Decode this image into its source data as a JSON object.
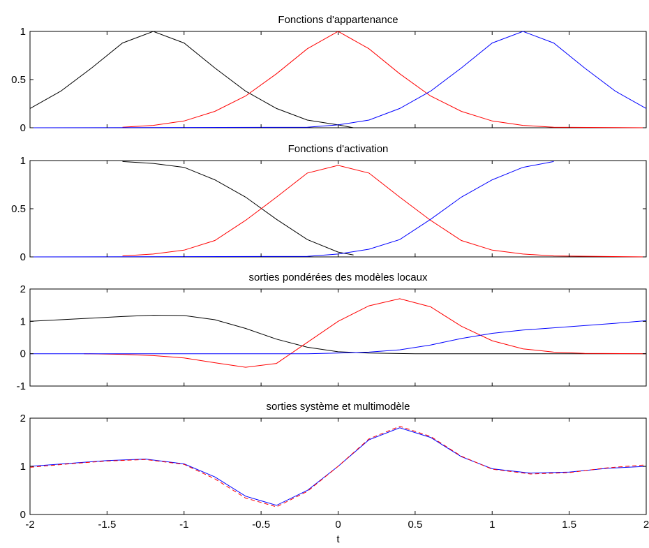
{
  "colors": {
    "black": "#000000",
    "red": "#ff0000",
    "blue": "#0000ff"
  },
  "chart_data": [
    {
      "type": "line",
      "title": "Fonctions d'appartenance",
      "xlim": [
        -2,
        2
      ],
      "ylim": [
        0,
        1
      ],
      "yticks": [
        0,
        0.5,
        1
      ],
      "ytick_labels": [
        "0",
        "0.5",
        "1"
      ],
      "xticks": [
        -2,
        -1.5,
        -1,
        -0.5,
        0,
        0.5,
        1,
        1.5,
        2
      ],
      "xtick_labels": [],
      "xlabel": "",
      "series": [
        {
          "color": "#000000",
          "style": "solid",
          "x": [
            -2,
            -1.8,
            -1.6,
            -1.4,
            -1.2,
            -1.0,
            -0.8,
            -0.6,
            -0.4,
            -0.2,
            0.0,
            0.1
          ],
          "y": [
            0.2,
            0.38,
            0.62,
            0.88,
            1.0,
            0.88,
            0.62,
            0.38,
            0.2,
            0.08,
            0.03,
            0.0
          ]
        },
        {
          "color": "#000000",
          "style": "solid",
          "x": [
            -2,
            2
          ],
          "y": [
            0.0,
            0.0
          ]
        },
        {
          "color": "#ff0000",
          "style": "solid",
          "x": [
            -1.4,
            -1.2,
            -1.0,
            -0.8,
            -0.6,
            -0.4,
            -0.2,
            0.0,
            0.2,
            0.4,
            0.6,
            0.8,
            1.0,
            1.2,
            1.4,
            2.0
          ],
          "y": [
            0.005,
            0.025,
            0.07,
            0.17,
            0.33,
            0.56,
            0.82,
            1.0,
            0.82,
            0.56,
            0.33,
            0.17,
            0.07,
            0.025,
            0.005,
            0.0
          ]
        },
        {
          "color": "#0000ff",
          "style": "solid",
          "x": [
            -2,
            -0.2,
            0.0,
            0.2,
            0.4,
            0.6,
            0.8,
            1.0,
            1.2,
            1.4,
            1.6,
            1.8,
            2.0
          ],
          "y": [
            0.0,
            0.005,
            0.03,
            0.08,
            0.2,
            0.38,
            0.62,
            0.88,
            1.0,
            0.88,
            0.62,
            0.38,
            0.2
          ]
        }
      ]
    },
    {
      "type": "line",
      "title": "Fonctions d'activation",
      "xlim": [
        -2,
        2
      ],
      "ylim": [
        0,
        1
      ],
      "yticks": [
        0,
        0.5,
        1
      ],
      "ytick_labels": [
        "0",
        "0.5",
        "1"
      ],
      "xticks": [
        -2,
        -1.5,
        -1,
        -0.5,
        0,
        0.5,
        1,
        1.5,
        2
      ],
      "xtick_labels": [],
      "xlabel": "",
      "series": [
        {
          "color": "#000000",
          "style": "solid",
          "x": [
            -1.4,
            -1.2,
            -1.0,
            -0.8,
            -0.6,
            -0.4,
            -0.2,
            0.0,
            0.1
          ],
          "y": [
            0.99,
            0.97,
            0.93,
            0.8,
            0.62,
            0.39,
            0.18,
            0.05,
            0.02
          ]
        },
        {
          "color": "#000000",
          "style": "solid",
          "x": [
            -2,
            2
          ],
          "y": [
            0.0,
            0.0
          ]
        },
        {
          "color": "#ff0000",
          "style": "solid",
          "x": [
            -1.4,
            -1.2,
            -1.0,
            -0.8,
            -0.6,
            -0.4,
            -0.2,
            0.0,
            0.2,
            0.4,
            0.6,
            0.8,
            1.0,
            1.2,
            1.4,
            2.0
          ],
          "y": [
            0.01,
            0.03,
            0.07,
            0.17,
            0.38,
            0.62,
            0.87,
            0.95,
            0.87,
            0.62,
            0.38,
            0.17,
            0.07,
            0.03,
            0.01,
            0.0
          ]
        },
        {
          "color": "#0000ff",
          "style": "solid",
          "x": [
            -2,
            -0.2,
            0.0,
            0.2,
            0.4,
            0.6,
            0.8,
            1.0,
            1.2,
            1.4
          ],
          "y": [
            0.0,
            0.005,
            0.03,
            0.08,
            0.18,
            0.39,
            0.62,
            0.8,
            0.93,
            0.99
          ]
        }
      ]
    },
    {
      "type": "line",
      "title": "sorties pondérées des modèles locaux",
      "xlim": [
        -2,
        2
      ],
      "ylim": [
        -1,
        2
      ],
      "yticks": [
        -1,
        0,
        1,
        2
      ],
      "ytick_labels": [
        "-1",
        "0",
        "1",
        "2"
      ],
      "xticks": [
        -2,
        -1.5,
        -1,
        -0.5,
        0,
        0.5,
        1,
        1.5,
        2
      ],
      "xtick_labels": [],
      "xlabel": "",
      "series": [
        {
          "color": "#000000",
          "style": "solid",
          "x": [
            -2,
            -1.8,
            -1.6,
            -1.4,
            -1.2,
            -1.0,
            -0.8,
            -0.6,
            -0.4,
            -0.2,
            0.0,
            0.2,
            0.5,
            1.0,
            2.0
          ],
          "y": [
            1.0,
            1.05,
            1.1,
            1.15,
            1.19,
            1.18,
            1.05,
            0.78,
            0.45,
            0.2,
            0.06,
            0.02,
            0.0,
            0.0,
            0.0
          ]
        },
        {
          "color": "#ff0000",
          "style": "solid",
          "x": [
            -1.65,
            -1.4,
            -1.2,
            -1.0,
            -0.8,
            -0.6,
            -0.4,
            -0.2,
            0.0,
            0.2,
            0.4,
            0.6,
            0.8,
            1.0,
            1.2,
            1.4,
            1.6,
            2.0
          ],
          "y": [
            0.0,
            -0.02,
            -0.06,
            -0.13,
            -0.28,
            -0.42,
            -0.3,
            0.35,
            1.0,
            1.48,
            1.7,
            1.45,
            0.85,
            0.4,
            0.15,
            0.05,
            0.01,
            0.0
          ]
        },
        {
          "color": "#0000ff",
          "style": "solid",
          "x": [
            -2,
            -0.2,
            0.0,
            0.2,
            0.4,
            0.6,
            0.8,
            1.0,
            1.2,
            1.4,
            1.6,
            1.8,
            2.0
          ],
          "y": [
            0.0,
            0.0,
            0.02,
            0.05,
            0.12,
            0.27,
            0.47,
            0.63,
            0.73,
            0.8,
            0.87,
            0.94,
            1.02
          ]
        }
      ]
    },
    {
      "type": "line",
      "title": "sorties système et multimodèle",
      "xlim": [
        -2,
        2
      ],
      "ylim": [
        0,
        2
      ],
      "yticks": [
        0,
        1,
        2
      ],
      "ytick_labels": [
        "0",
        "1",
        "2"
      ],
      "xticks": [
        -2,
        -1.5,
        -1,
        -0.5,
        0,
        0.5,
        1,
        1.5,
        2
      ],
      "xtick_labels": [
        "-2",
        "-1.5",
        "-1",
        "-0.5",
        "0",
        "0.5",
        "1",
        "1.5",
        "2"
      ],
      "xlabel": "t",
      "series": [
        {
          "color": "#0000ff",
          "style": "solid",
          "x": [
            -2,
            -1.75,
            -1.5,
            -1.25,
            -1.0,
            -0.8,
            -0.6,
            -0.4,
            -0.2,
            0.0,
            0.2,
            0.4,
            0.6,
            0.8,
            1.0,
            1.25,
            1.5,
            1.75,
            2.0
          ],
          "y": [
            1.0,
            1.06,
            1.12,
            1.15,
            1.05,
            0.78,
            0.38,
            0.19,
            0.5,
            1.0,
            1.55,
            1.8,
            1.6,
            1.2,
            0.95,
            0.86,
            0.88,
            0.96,
            1.0
          ]
        },
        {
          "color": "#ff0000",
          "style": "dashed",
          "x": [
            -2,
            -1.75,
            -1.5,
            -1.25,
            -1.0,
            -0.8,
            -0.6,
            -0.4,
            -0.2,
            0.0,
            0.2,
            0.4,
            0.6,
            0.8,
            1.0,
            1.25,
            1.5,
            1.75,
            2.0
          ],
          "y": [
            0.98,
            1.05,
            1.11,
            1.14,
            1.04,
            0.74,
            0.34,
            0.16,
            0.48,
            1.0,
            1.57,
            1.83,
            1.62,
            1.21,
            0.94,
            0.84,
            0.87,
            0.97,
            1.03
          ]
        }
      ]
    }
  ]
}
